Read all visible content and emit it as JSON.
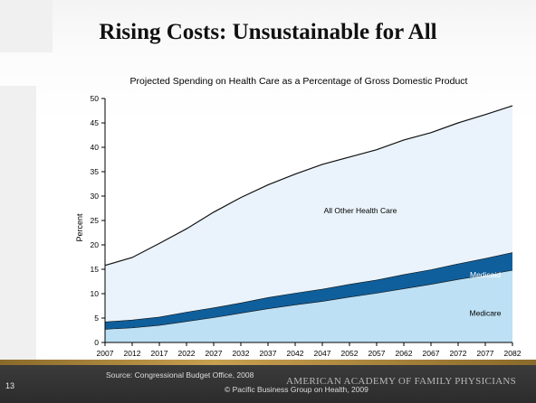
{
  "slide": {
    "title": "Rising Costs:  Unsustainable for All",
    "slide_number": "13",
    "source": "Source: Congressional Budget Office, 2008",
    "copyright": "© Pacific Business Group on Health, 2009",
    "organization": "AMERICAN ACADEMY OF FAMILY PHYSICIANS"
  },
  "chart_data": {
    "type": "area",
    "stacked": true,
    "title": "Projected Spending on Health Care as a Percentage of Gross Domestic Product",
    "xlabel": "",
    "ylabel": "Percent",
    "xlim": [
      2007,
      2082
    ],
    "ylim": [
      0,
      50
    ],
    "x_ticks": [
      "2007",
      "2012",
      "2017",
      "2022",
      "2027",
      "2032",
      "2037",
      "2042",
      "2047",
      "2052",
      "2057",
      "2062",
      "2067",
      "2072",
      "2077",
      "2082"
    ],
    "y_ticks": [
      "0",
      "5",
      "10",
      "15",
      "20",
      "25",
      "30",
      "35",
      "40",
      "45",
      "50"
    ],
    "grid": false,
    "legend": "inline labels",
    "x": [
      2007,
      2012,
      2017,
      2022,
      2027,
      2032,
      2037,
      2042,
      2047,
      2052,
      2057,
      2062,
      2067,
      2072,
      2077,
      2082
    ],
    "series": [
      {
        "name": "Medicare",
        "color": "#bde0f4",
        "values": [
          2.7,
          3.0,
          3.5,
          4.3,
          5.1,
          6.0,
          6.9,
          7.7,
          8.4,
          9.3,
          10.1,
          11.0,
          11.9,
          12.9,
          13.8,
          14.8
        ]
      },
      {
        "name": "Medicaid",
        "color": "#0f5f9c",
        "values": [
          1.5,
          1.6,
          1.7,
          1.9,
          2.0,
          2.1,
          2.3,
          2.4,
          2.5,
          2.6,
          2.7,
          2.9,
          3.0,
          3.2,
          3.4,
          3.6
        ]
      },
      {
        "name": "All Other Health Care",
        "color": "#eaf3fb",
        "values": [
          11.6,
          12.8,
          15.1,
          17.1,
          19.6,
          21.6,
          23.1,
          24.4,
          25.6,
          26.1,
          26.7,
          27.6,
          28.1,
          28.9,
          29.5,
          30.1
        ]
      }
    ]
  }
}
